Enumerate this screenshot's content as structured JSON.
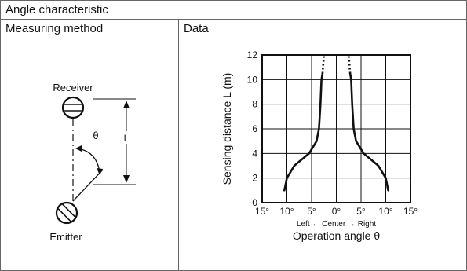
{
  "table": {
    "title": "Angle characteristic",
    "col_method": "Measuring method",
    "col_data": "Data"
  },
  "diagram": {
    "receiver_label": "Receiver",
    "emitter_label": "Emitter",
    "theta_symbol": "θ",
    "distance_symbol": "L"
  },
  "chart_data": {
    "type": "line",
    "xlabel": "Operation angle θ",
    "xlabel_sub": "Left ← Center → Right",
    "ylabel": "Sensing distance L (m)",
    "xlim": [
      -15,
      15
    ],
    "ylim": [
      0,
      12
    ],
    "grid": true,
    "x_ticks": [
      -15,
      -10,
      -5,
      0,
      5,
      10,
      15
    ],
    "x_tick_labels": [
      "15°",
      "10°",
      "5°",
      "0°",
      "5°",
      "10°",
      "15°"
    ],
    "y_ticks": [
      0,
      2,
      4,
      6,
      8,
      10,
      12
    ],
    "y_tick_labels": [
      "0",
      "2",
      "4",
      "6",
      "8",
      "10",
      "12"
    ],
    "series": [
      {
        "side": "left",
        "points": [
          [
            -10.5,
            1
          ],
          [
            -10,
            2
          ],
          [
            -8.5,
            3
          ],
          [
            -5.5,
            4
          ],
          [
            -4,
            5
          ],
          [
            -3.5,
            6
          ],
          [
            -3.2,
            8
          ],
          [
            -3,
            10
          ],
          [
            -2.8,
            10.5
          ]
        ],
        "dotted_points": [
          [
            -2.8,
            10.5
          ],
          [
            -2.5,
            12
          ]
        ]
      },
      {
        "side": "right",
        "points": [
          [
            10.5,
            1
          ],
          [
            10,
            2
          ],
          [
            8.5,
            3
          ],
          [
            5.5,
            4
          ],
          [
            4,
            5
          ],
          [
            3.5,
            6
          ],
          [
            3.2,
            8
          ],
          [
            3,
            10
          ],
          [
            2.8,
            10.5
          ]
        ],
        "dotted_points": [
          [
            2.8,
            10.5
          ],
          [
            2.5,
            12
          ]
        ]
      }
    ]
  }
}
